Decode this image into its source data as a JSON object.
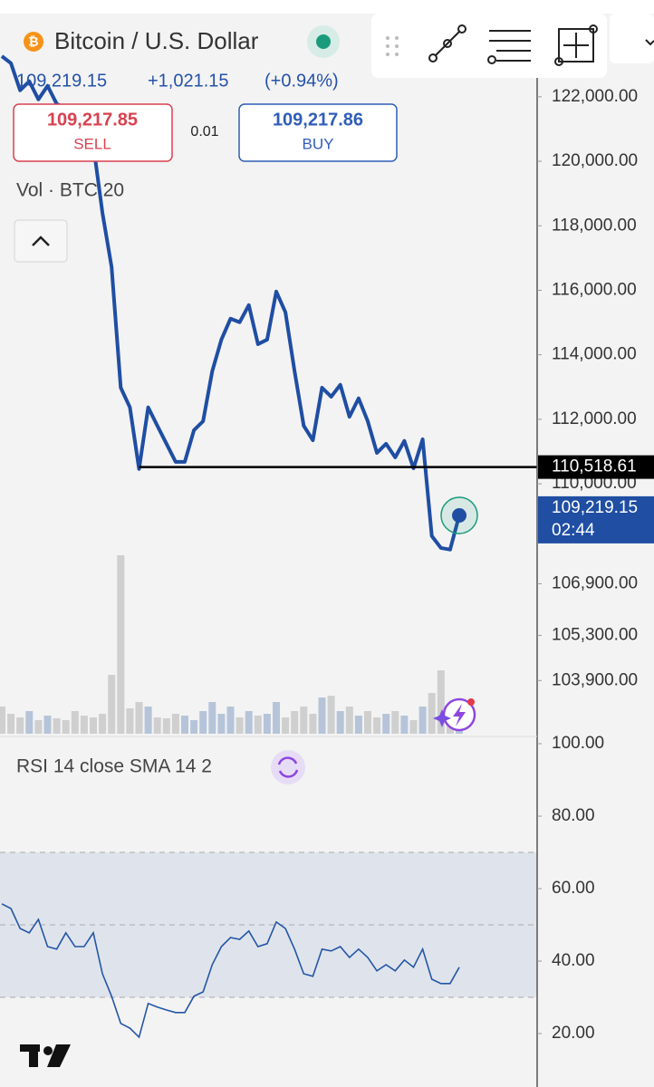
{
  "header": {
    "symbol": "Bitcoin / U.S. Dollar",
    "price": "109,219.15",
    "change": "+1,021.15",
    "change_pct": "(+0.94%)"
  },
  "order": {
    "sell_price": "109,217.85",
    "sell_label": "SELL",
    "spread": "0.01",
    "buy_price": "109,217.86",
    "buy_label": "BUY"
  },
  "volume_legend": "Vol · BTC 20",
  "rsi_legend": "RSI 14 close SMA 14 2",
  "chart_data": [
    {
      "type": "line",
      "color": "#1f4ea3",
      "values": [
        123260,
        123040,
        122200,
        122480,
        121920,
        122340,
        121780,
        121640,
        121350,
        120930,
        120510,
        118400,
        116720,
        112980,
        112370,
        110460,
        112370,
        111800,
        111240,
        110680,
        110680,
        111660,
        111940,
        113490,
        114470,
        115120,
        115010,
        115540,
        114330,
        114470,
        115960,
        115320,
        113490,
        111800,
        111350,
        112980,
        112700,
        113070,
        112080,
        112650,
        111940,
        110960,
        111240,
        110820,
        111330,
        110480,
        111380,
        108380,
        108010,
        107960,
        109020
      ],
      "ylim": [
        102250,
        124580
      ],
      "yticks": [
        {
          "value": 122000,
          "label": "122,000.00"
        },
        {
          "value": 120000,
          "label": "120,000.00"
        },
        {
          "value": 118000,
          "label": "118,000.00"
        },
        {
          "value": 116000,
          "label": "116,000.00"
        },
        {
          "value": 114000,
          "label": "114,000.00"
        },
        {
          "value": 112000,
          "label": "112,000.00"
        },
        {
          "value": 110000,
          "label": "110,000.00"
        },
        {
          "value": 106900,
          "label": "106,900.00"
        },
        {
          "value": 105300,
          "label": "105,300.00"
        },
        {
          "value": 103900,
          "label": "103,900.00"
        }
      ],
      "reference_line": {
        "value": 110518.61,
        "label": "110,518.61"
      },
      "last_price": {
        "value": 109219.15,
        "label": "109,219.15",
        "countdown": "02:44"
      }
    },
    {
      "type": "bar",
      "colors": [
        "#b6c4da",
        "#cfcfcf"
      ],
      "values": [
        30,
        22,
        18,
        25,
        15,
        20,
        17,
        15,
        25,
        20,
        18,
        22,
        65,
        197,
        28,
        35,
        30,
        18,
        17,
        22,
        20,
        15,
        25,
        35,
        22,
        30,
        18,
        25,
        20,
        22,
        35,
        18,
        25,
        30,
        22,
        40,
        42,
        25,
        30,
        20,
        25,
        18,
        22,
        25,
        20,
        15,
        30,
        45,
        70,
        25,
        30
      ],
      "ylim": [
        0,
        220
      ]
    },
    {
      "type": "line",
      "color": "#2456a6",
      "values": [
        55.8,
        54.5,
        49,
        47.8,
        51.5,
        44,
        43.3,
        47.8,
        44,
        44,
        47.8,
        36.5,
        30.3,
        22.8,
        21.5,
        19,
        28.3,
        27.3,
        26.5,
        25.8,
        25.8,
        30.3,
        31.5,
        39,
        44,
        46.5,
        46,
        48.3,
        44,
        44.8,
        50.8,
        49,
        43.3,
        36.5,
        35.8,
        43.3,
        42.8,
        44,
        41,
        43.3,
        41,
        37.3,
        39,
        37.3,
        40.3,
        38.3,
        43.3,
        35,
        33.8,
        33.8,
        38.3
      ],
      "ylim": [
        5.25,
        102
      ],
      "yticks": [
        {
          "value": 100,
          "label": "100.00"
        },
        {
          "value": 80,
          "label": "80.00"
        },
        {
          "value": 60,
          "label": "60.00"
        },
        {
          "value": 40,
          "label": "40.00"
        },
        {
          "value": 20,
          "label": "20.00"
        }
      ],
      "band": [
        30,
        70
      ],
      "levels": [
        50
      ]
    }
  ]
}
